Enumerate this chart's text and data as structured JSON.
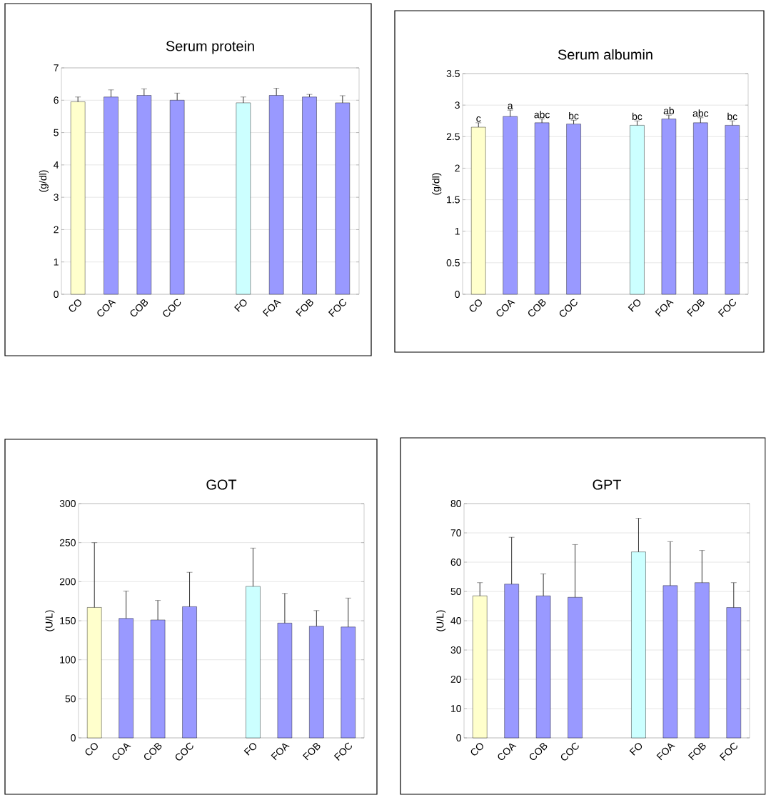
{
  "chart_data": [
    {
      "type": "bar",
      "title": "Serum protein",
      "ylabel": "(g/dl)",
      "categories": [
        "CO",
        "COA",
        "COB",
        "COC",
        null,
        "FO",
        "FOA",
        "FOB",
        "FOC"
      ],
      "values": [
        5.95,
        6.1,
        6.15,
        6.0,
        null,
        5.92,
        6.15,
        6.1,
        5.92
      ],
      "errors": [
        0.15,
        0.22,
        0.2,
        0.22,
        null,
        0.18,
        0.22,
        0.08,
        0.22
      ],
      "colors": [
        "#ffffcc",
        "#9999ff",
        "#9999ff",
        "#9999ff",
        "#9999ff",
        "#ccffff",
        "#9999ff",
        "#9999ff",
        "#9999ff"
      ],
      "ylim": [
        0,
        7
      ],
      "yticks": [
        0,
        1,
        2,
        3,
        4,
        5,
        6,
        7
      ],
      "grid": "y"
    },
    {
      "type": "bar",
      "title": "Serum albumin",
      "ylabel": "(g/dl)",
      "categories": [
        "CO",
        "COA",
        "COB",
        "COC",
        null,
        "FO",
        "FOA",
        "FOB",
        "FOC"
      ],
      "values": [
        2.65,
        2.82,
        2.72,
        2.7,
        null,
        2.68,
        2.78,
        2.72,
        2.68
      ],
      "errors": [
        0.07,
        0.1,
        0.06,
        0.06,
        null,
        0.07,
        0.06,
        0.08,
        0.07
      ],
      "colors": [
        "#ffffcc",
        "#9999ff",
        "#9999ff",
        "#9999ff",
        "#9999ff",
        "#ccffff",
        "#9999ff",
        "#9999ff",
        "#9999ff"
      ],
      "ylim": [
        0,
        3.5
      ],
      "yticks": [
        0,
        0.5,
        1,
        1.5,
        2,
        2.5,
        3,
        3.5
      ],
      "grid": "y",
      "annotations": [
        {
          "text": "c",
          "x": "CO",
          "y": 2.72
        },
        {
          "text": "a",
          "x": "COA",
          "y": 2.92
        },
        {
          "text": "abc",
          "x": "COB",
          "y": 2.78
        },
        {
          "text": "bc",
          "x": "COC",
          "y": 2.76
        },
        {
          "text": "bc",
          "x": "FO",
          "y": 2.75
        },
        {
          "text": "ab",
          "x": "FOA",
          "y": 2.84
        },
        {
          "text": "abc",
          "x": "FOB",
          "y": 2.8
        },
        {
          "text": "bc",
          "x": "FOC",
          "y": 2.75
        }
      ]
    },
    {
      "type": "bar",
      "title": "GOT",
      "ylabel": "(U/L)",
      "categories": [
        "CO",
        "COA",
        "COB",
        "COC",
        null,
        "FO",
        "FOA",
        "FOB",
        "FOC"
      ],
      "values": [
        167,
        153,
        151,
        168,
        null,
        194,
        147,
        143,
        142
      ],
      "errors": [
        83,
        35,
        25,
        44,
        null,
        49,
        38,
        20,
        37
      ],
      "colors": [
        "#ffffcc",
        "#9999ff",
        "#9999ff",
        "#9999ff",
        "#9999ff",
        "#ccffff",
        "#9999ff",
        "#9999ff",
        "#9999ff"
      ],
      "ylim": [
        0,
        300
      ],
      "yticks": [
        0,
        50,
        100,
        150,
        200,
        250,
        300
      ],
      "grid": "y"
    },
    {
      "type": "bar",
      "title": "GPT",
      "ylabel": "(U/L)",
      "categories": [
        "CO",
        "COA",
        "COB",
        "COC",
        null,
        "FO",
        "FOA",
        "FOB",
        "FOC"
      ],
      "values": [
        48.5,
        52.5,
        48.5,
        48,
        null,
        63.5,
        52,
        53,
        44.5
      ],
      "errors": [
        4.5,
        16,
        7.5,
        18,
        null,
        11.5,
        15,
        11,
        8.5
      ],
      "colors": [
        "#ffffcc",
        "#9999ff",
        "#9999ff",
        "#9999ff",
        "#9999ff",
        "#ccffff",
        "#9999ff",
        "#9999ff",
        "#9999ff"
      ],
      "ylim": [
        0,
        80
      ],
      "yticks": [
        0,
        10,
        20,
        30,
        40,
        50,
        60,
        70,
        80
      ],
      "grid": "y"
    }
  ]
}
